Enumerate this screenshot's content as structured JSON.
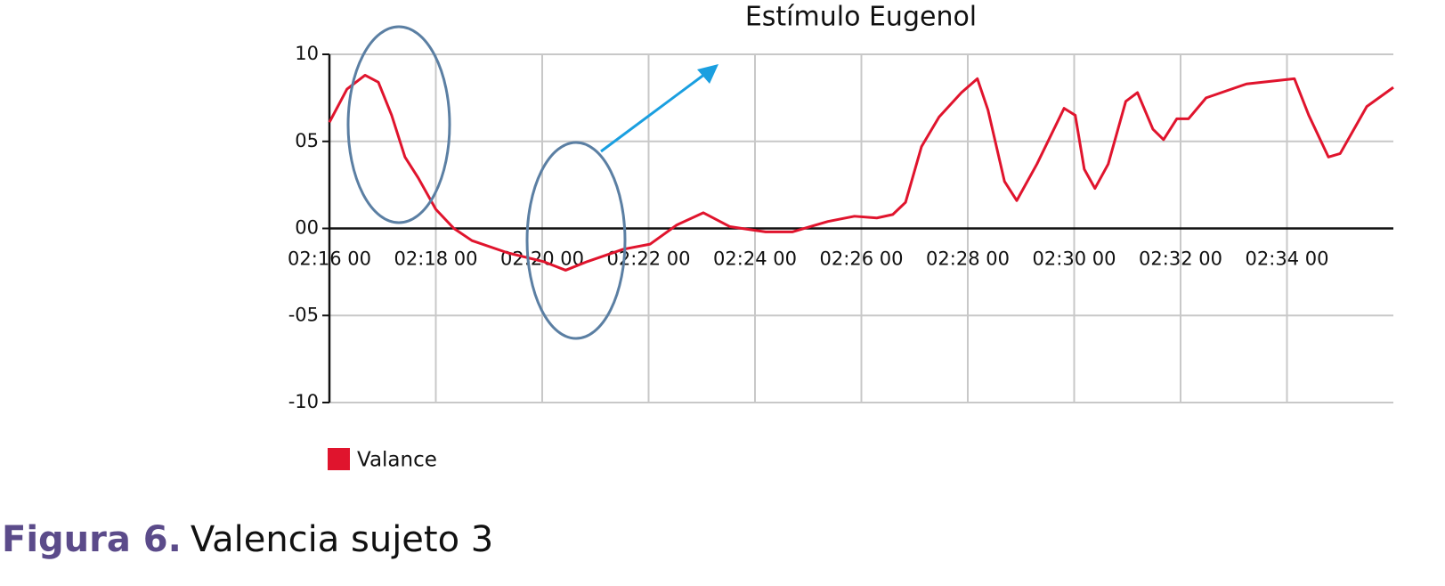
{
  "chart_data": {
    "type": "line",
    "title": "Estímulo Eugenol",
    "x": [
      16.0,
      16.33,
      16.67,
      16.92,
      17.17,
      17.42,
      17.67,
      18.0,
      18.34,
      18.68,
      19.35,
      20.02,
      20.44,
      20.85,
      21.52,
      22.03,
      22.53,
      23.03,
      23.53,
      24.2,
      24.7,
      25.37,
      25.87,
      26.29,
      26.59,
      26.83,
      27.13,
      27.46,
      27.88,
      28.18,
      28.38,
      28.69,
      28.92,
      29.3,
      29.81,
      30.02,
      30.19,
      30.39,
      30.64,
      30.97,
      31.19,
      31.48,
      31.68,
      31.93,
      32.15,
      32.48,
      33.24,
      34.14,
      34.41,
      34.78,
      35.0,
      35.5,
      36.0
    ],
    "series": [
      {
        "name": "Valance",
        "color": "#e0142d",
        "values": [
          6.1,
          8.0,
          8.8,
          8.4,
          6.5,
          4.1,
          2.9,
          1.1,
          0.0,
          -0.7,
          -1.4,
          -1.9,
          -2.4,
          -1.9,
          -1.2,
          -0.9,
          0.2,
          0.9,
          0.1,
          -0.2,
          -0.2,
          0.4,
          0.7,
          0.6,
          0.8,
          1.5,
          4.7,
          6.4,
          7.8,
          8.6,
          6.8,
          2.7,
          1.6,
          3.7,
          6.9,
          6.5,
          3.4,
          2.3,
          3.7,
          7.3,
          7.8,
          5.7,
          5.1,
          6.3,
          6.3,
          7.5,
          8.3,
          8.6,
          6.5,
          4.1,
          4.3,
          7.0,
          8.1
        ]
      }
    ],
    "xlim": [
      16,
      36
    ],
    "xticks": [
      {
        "value": 16,
        "label": "02:16 00"
      },
      {
        "value": 18,
        "label": "02:18 00"
      },
      {
        "value": 20,
        "label": "02:20 00"
      },
      {
        "value": 22,
        "label": "02:22 00"
      },
      {
        "value": 24,
        "label": "02:24 00"
      },
      {
        "value": 26,
        "label": "02:26 00"
      },
      {
        "value": 28,
        "label": "02:28 00"
      },
      {
        "value": 30,
        "label": "02:30 00"
      },
      {
        "value": 32,
        "label": "02:32 00"
      },
      {
        "value": 34,
        "label": "02:34 00"
      }
    ],
    "ylim": [
      -10,
      10
    ],
    "yticks": [
      10,
      {
        "value": 5,
        "label": "05"
      },
      {
        "value": 0,
        "label": "00"
      },
      {
        "value": -5,
        "label": "-05"
      },
      -10
    ],
    "grid": true,
    "legend": "bottom-left"
  },
  "caption": {
    "label": "Figura 6.",
    "text": "Valencia sujeto 3"
  }
}
